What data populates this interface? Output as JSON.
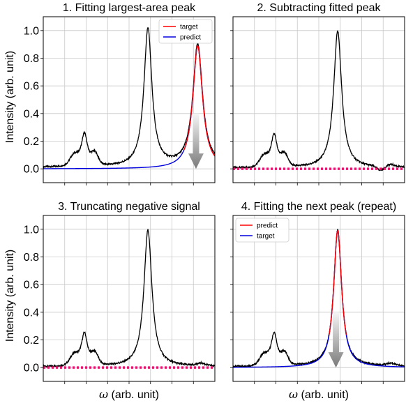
{
  "figure": {
    "ylabel": "Intensity (arb. unit)",
    "xlabel_symbol": "ω",
    "xlabel_text": " (arb. unit)"
  },
  "colors": {
    "spectrum": "#000000",
    "red": "#ff0000",
    "blue": "#0000dd",
    "dotted": "#e0186e",
    "grid": "#c8c8c8",
    "arrow_top": "#f6f6f6",
    "arrow_bottom": "#7a7a7a"
  },
  "chart_data": [
    {
      "type": "line",
      "title": "1. Fitting largest-area peak",
      "xlim": [
        0,
        1
      ],
      "ylim": [
        -0.1,
        1.1
      ],
      "yticks": [
        "0.0",
        "0.2",
        "0.4",
        "0.6",
        "0.8",
        "1.0"
      ],
      "grid": true,
      "legend": {
        "position": "top-right",
        "entries": [
          {
            "label": "target",
            "color": "red"
          },
          {
            "label": "predict",
            "color": "blue"
          }
        ]
      },
      "series": [
        {
          "key": "spectrum",
          "color": "spectrum",
          "peaks": [
            [
              0.24,
              0.022,
              0.24
            ],
            [
              0.18,
              0.035,
              0.07
            ],
            [
              0.3,
              0.028,
              0.08
            ],
            [
              0.61,
              0.028,
              1.0
            ],
            [
              0.9,
              0.034,
              0.89
            ]
          ],
          "baseline": 0.01
        },
        {
          "key": "fit",
          "color": "blue",
          "lorentz": [
            0.9,
            0.034,
            0.89
          ],
          "range": [
            0,
            1
          ]
        },
        {
          "key": "fit-red",
          "color": "red",
          "lorentz": [
            0.9,
            0.034,
            0.89
          ],
          "range": [
            0.82,
            1
          ]
        }
      ],
      "arrow": {
        "x": 0.89,
        "y_top": 0.4,
        "y_bottom": 0.0
      }
    },
    {
      "type": "line",
      "title": "2. Subtracting fitted peak",
      "xlim": [
        0,
        1
      ],
      "ylim": [
        -0.1,
        1.1
      ],
      "grid": true,
      "series": [
        {
          "key": "spectrum",
          "color": "spectrum",
          "peaks": [
            [
              0.24,
              0.022,
              0.24
            ],
            [
              0.18,
              0.035,
              0.07
            ],
            [
              0.3,
              0.028,
              0.08
            ],
            [
              0.61,
              0.028,
              0.99
            ],
            [
              0.92,
              0.03,
              0.02
            ]
          ],
          "baseline": 0.005,
          "dip": [
            0.86,
            0.03,
            -0.03
          ]
        },
        {
          "key": "zero-line",
          "color": "dotted",
          "constant": 0.0,
          "dotted": true
        }
      ]
    },
    {
      "type": "line",
      "title": "3. Truncating negative signal",
      "xlim": [
        0,
        1
      ],
      "ylim": [
        -0.1,
        1.1
      ],
      "yticks": [
        "0.0",
        "0.2",
        "0.4",
        "0.6",
        "0.8",
        "1.0"
      ],
      "grid": true,
      "series": [
        {
          "key": "spectrum",
          "color": "spectrum",
          "peaks": [
            [
              0.24,
              0.022,
              0.24
            ],
            [
              0.18,
              0.035,
              0.07
            ],
            [
              0.3,
              0.028,
              0.08
            ],
            [
              0.61,
              0.028,
              0.99
            ],
            [
              0.92,
              0.03,
              0.02
            ]
          ],
          "baseline": 0.005
        },
        {
          "key": "zero-line",
          "color": "dotted",
          "constant": 0.0,
          "dotted": true
        }
      ]
    },
    {
      "type": "line",
      "title": "4. Fitting the next peak (repeat)",
      "xlim": [
        0,
        1
      ],
      "ylim": [
        -0.1,
        1.1
      ],
      "grid": true,
      "legend": {
        "position": "top-left",
        "entries": [
          {
            "label": "predict",
            "color": "red"
          },
          {
            "label": "target",
            "color": "blue"
          }
        ]
      },
      "series": [
        {
          "key": "spectrum",
          "color": "spectrum",
          "peaks": [
            [
              0.24,
              0.022,
              0.24
            ],
            [
              0.18,
              0.035,
              0.07
            ],
            [
              0.3,
              0.028,
              0.08
            ],
            [
              0.61,
              0.028,
              0.99
            ],
            [
              0.92,
              0.03,
              0.02
            ]
          ],
          "baseline": 0.005
        },
        {
          "key": "fit",
          "color": "blue",
          "lorentz": [
            0.61,
            0.028,
            0.99
          ],
          "range": [
            0,
            1
          ]
        },
        {
          "key": "fit-red",
          "color": "red",
          "lorentz": [
            0.61,
            0.028,
            0.99
          ],
          "range": [
            0.56,
            0.66
          ]
        }
      ],
      "arrow": {
        "x": 0.6,
        "y_top": 0.4,
        "y_bottom": 0.0
      }
    }
  ]
}
